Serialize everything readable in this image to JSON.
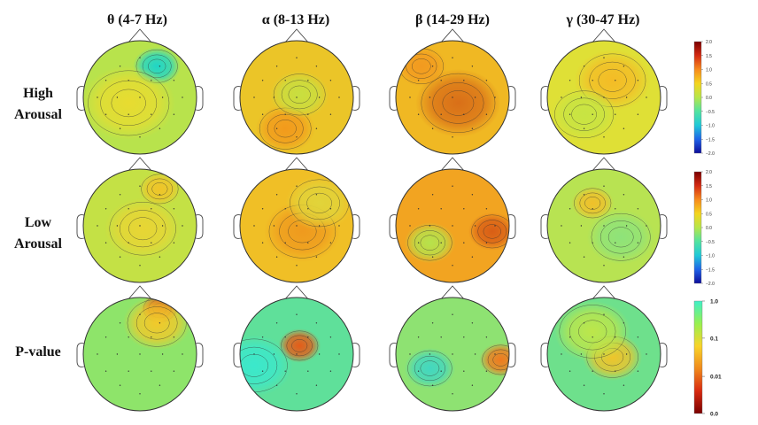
{
  "bands": [
    {
      "label": "θ (4-7 Hz)"
    },
    {
      "label": "α (8-13 Hz)"
    },
    {
      "label": "β (14-29 Hz)"
    },
    {
      "label": "γ (30-47 Hz)"
    }
  ],
  "rows": [
    {
      "label_line1": "High",
      "label_line2": "Arousal"
    },
    {
      "label_line1": "Low",
      "label_line2": "Arousal"
    },
    {
      "label_line1": "P-value",
      "label_line2": ""
    }
  ],
  "colorbar_power": {
    "ticks": [
      "2.0",
      "1.5",
      "1.0",
      "0.5",
      "0.0",
      "−0.5",
      "−1.0",
      "−1.5",
      "−2.0"
    ],
    "colors": [
      "#7a0000",
      "#d42a12",
      "#f78a1c",
      "#f4d51e",
      "#b6e64a",
      "#52e3a0",
      "#20c9d8",
      "#1f63e8",
      "#0c0c9a"
    ]
  },
  "colorbar_pvalue": {
    "ticks": [
      "1.0",
      "0.1",
      "0.01",
      "0.0"
    ],
    "colors": [
      "#3ff0c8",
      "#98f050",
      "#f8d42a",
      "#f08a1c",
      "#d82a10",
      "#7a0000"
    ]
  },
  "maps": [
    [
      {
        "base": "#b8e34c",
        "blobs": [
          {
            "c": "#1fd6c7",
            "r": "cool"
          },
          {
            "c": "#e8dc30",
            "r": "warm"
          }
        ]
      },
      {
        "base": "#ebc528",
        "blobs": [
          {
            "c": "#f29a1c",
            "r": "hot"
          },
          {
            "c": "#c8df40",
            "r": "mid"
          }
        ]
      },
      {
        "base": "#f0b823",
        "blobs": [
          {
            "c": "#f29a20",
            "r": "hot"
          },
          {
            "c": "#d96f18",
            "r": "hot2"
          }
        ]
      },
      {
        "base": "#dfe036",
        "blobs": [
          {
            "c": "#f4bc26",
            "r": "warm"
          },
          {
            "c": "#c7e443",
            "r": "mid"
          }
        ]
      }
    ],
    [
      {
        "base": "#c4e145",
        "blobs": [
          {
            "c": "#f0c428",
            "r": "warm"
          },
          {
            "c": "#e8d534",
            "r": "mid"
          }
        ]
      },
      {
        "base": "#f0bf26",
        "blobs": [
          {
            "c": "#ef9a1e",
            "r": "hot"
          },
          {
            "c": "#e1d43a",
            "r": "mid"
          }
        ]
      },
      {
        "base": "#f2a421",
        "blobs": [
          {
            "c": "#d95e16",
            "r": "hot"
          },
          {
            "c": "#b6e34c",
            "r": "cool"
          }
        ]
      },
      {
        "base": "#b8e352",
        "blobs": [
          {
            "c": "#f0c02a",
            "r": "warm"
          },
          {
            "c": "#8ee37a",
            "r": "cool"
          }
        ]
      }
    ],
    [
      {
        "base": "#8ee46a",
        "blobs": [
          {
            "c": "#e1471a",
            "r": "hot"
          },
          {
            "c": "#f2c92a",
            "r": "warm"
          }
        ]
      },
      {
        "base": "#5fe09a",
        "blobs": [
          {
            "c": "#e55c18",
            "r": "hot"
          },
          {
            "c": "#3be8cc",
            "r": "cool"
          }
        ]
      },
      {
        "base": "#8ee272",
        "blobs": [
          {
            "c": "#f07a1e",
            "r": "hot"
          },
          {
            "c": "#42d7c0",
            "r": "cool"
          }
        ]
      },
      {
        "base": "#6ee08c",
        "blobs": [
          {
            "c": "#f0c42a",
            "r": "warm"
          },
          {
            "c": "#bde64a",
            "r": "mid"
          }
        ]
      }
    ]
  ]
}
